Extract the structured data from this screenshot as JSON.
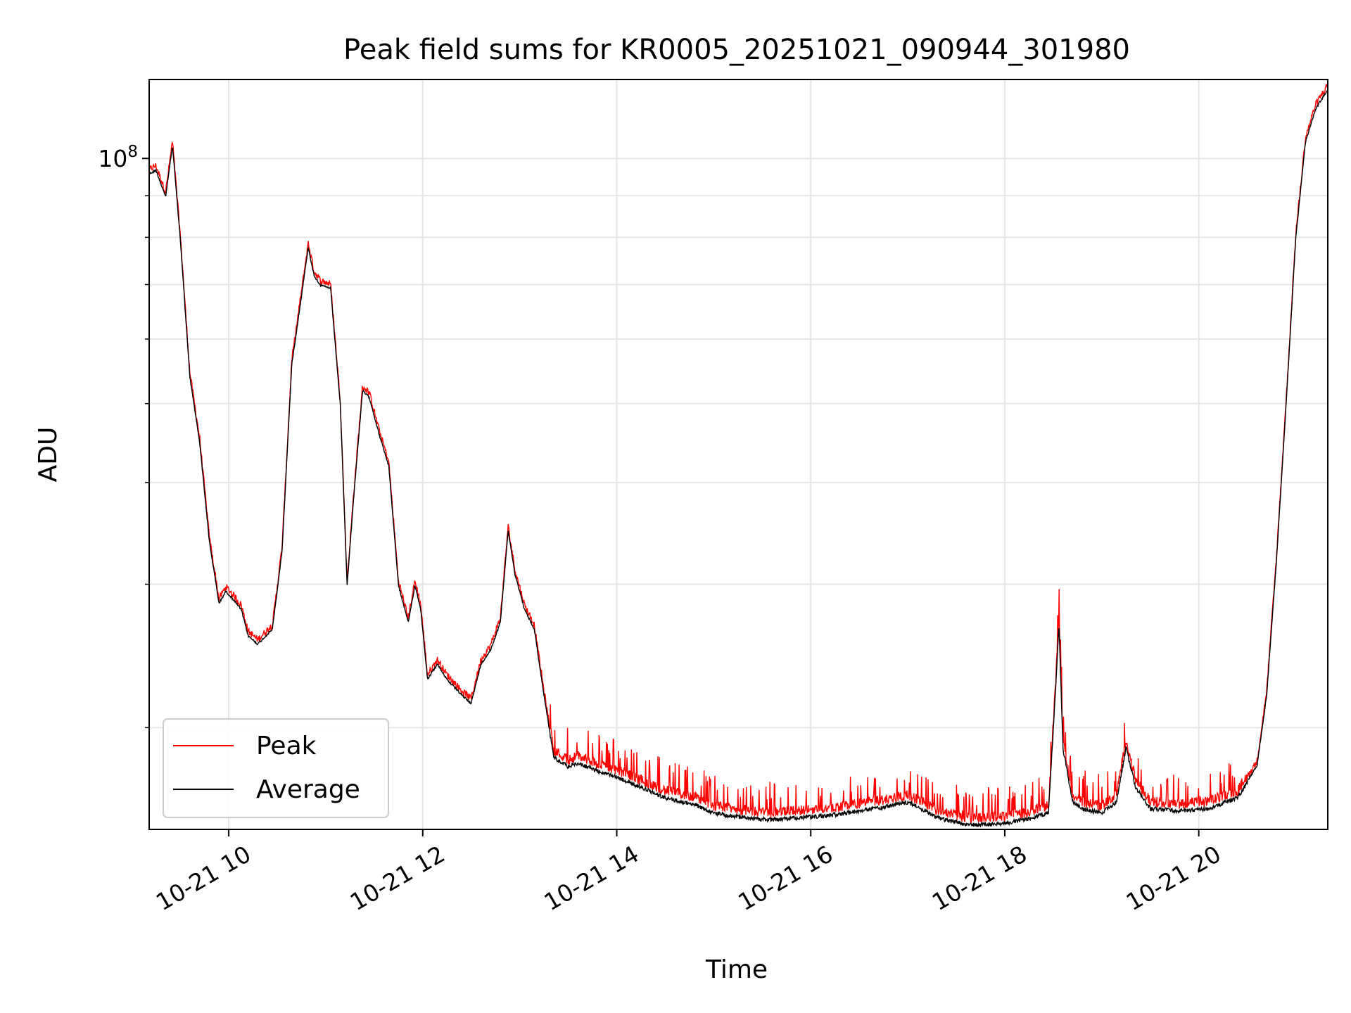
{
  "chart_data": {
    "type": "line",
    "title": "Peak field sums for KR0005_20251021_090944_301980",
    "xlabel": "Time",
    "ylabel": "ADU",
    "y_scale": "log",
    "ylim": [
      15000000,
      125000000
    ],
    "xlim_hours": [
      9.18,
      21.33
    ],
    "x_ticks": [
      {
        "value": 10,
        "label": "10-21 10"
      },
      {
        "value": 12,
        "label": "10-21 12"
      },
      {
        "value": 14,
        "label": "10-21 14"
      },
      {
        "value": 16,
        "label": "10-21 16"
      },
      {
        "value": 18,
        "label": "10-21 18"
      },
      {
        "value": 20,
        "label": "10-21 20"
      }
    ],
    "y_ticks": [
      {
        "value": 100000000,
        "base": "10",
        "exp": "8"
      }
    ],
    "y_minor_ticks": [
      20000000,
      30000000,
      40000000,
      50000000,
      60000000,
      70000000,
      80000000,
      90000000
    ],
    "grid": true,
    "legend_position": "lower-left",
    "series": [
      {
        "name": "Peak",
        "color": "#ff0000"
      },
      {
        "name": "Average",
        "color": "#000000"
      }
    ],
    "average_points": [
      [
        9.18,
        96000000
      ],
      [
        9.25,
        97000000
      ],
      [
        9.35,
        90000000
      ],
      [
        9.42,
        104000000
      ],
      [
        9.5,
        80000000
      ],
      [
        9.6,
        54000000
      ],
      [
        9.7,
        45000000
      ],
      [
        9.8,
        34000000
      ],
      [
        9.9,
        28500000
      ],
      [
        9.97,
        29500000
      ],
      [
        10.05,
        28800000
      ],
      [
        10.13,
        28000000
      ],
      [
        10.2,
        26000000
      ],
      [
        10.3,
        25400000
      ],
      [
        10.45,
        26500000
      ],
      [
        10.55,
        33000000
      ],
      [
        10.65,
        56000000
      ],
      [
        10.75,
        68000000
      ],
      [
        10.82,
        78000000
      ],
      [
        10.88,
        72000000
      ],
      [
        10.95,
        70000000
      ],
      [
        11.05,
        69500000
      ],
      [
        11.15,
        50000000
      ],
      [
        11.22,
        30000000
      ],
      [
        11.3,
        40000000
      ],
      [
        11.38,
        52000000
      ],
      [
        11.45,
        51000000
      ],
      [
        11.55,
        46000000
      ],
      [
        11.65,
        42000000
      ],
      [
        11.75,
        30000000
      ],
      [
        11.85,
        27000000
      ],
      [
        11.92,
        30000000
      ],
      [
        11.98,
        28000000
      ],
      [
        12.05,
        23000000
      ],
      [
        12.15,
        24000000
      ],
      [
        12.25,
        23000000
      ],
      [
        12.4,
        22000000
      ],
      [
        12.5,
        21500000
      ],
      [
        12.6,
        24000000
      ],
      [
        12.7,
        25000000
      ],
      [
        12.8,
        27000000
      ],
      [
        12.88,
        35000000
      ],
      [
        12.95,
        31000000
      ],
      [
        13.05,
        28000000
      ],
      [
        13.15,
        26500000
      ],
      [
        13.25,
        22000000
      ],
      [
        13.35,
        18500000
      ],
      [
        13.5,
        18000000
      ],
      [
        13.6,
        18200000
      ],
      [
        13.8,
        17800000
      ],
      [
        14.0,
        17500000
      ],
      [
        14.25,
        17000000
      ],
      [
        14.5,
        16500000
      ],
      [
        14.8,
        16200000
      ],
      [
        15.0,
        15800000
      ],
      [
        15.3,
        15600000
      ],
      [
        15.6,
        15500000
      ],
      [
        15.9,
        15600000
      ],
      [
        16.2,
        15700000
      ],
      [
        16.5,
        15900000
      ],
      [
        16.8,
        16100000
      ],
      [
        17.0,
        16300000
      ],
      [
        17.1,
        16100000
      ],
      [
        17.3,
        15600000
      ],
      [
        17.6,
        15300000
      ],
      [
        17.9,
        15300000
      ],
      [
        18.2,
        15500000
      ],
      [
        18.45,
        15800000
      ],
      [
        18.52,
        22000000
      ],
      [
        18.56,
        27000000
      ],
      [
        18.6,
        19000000
      ],
      [
        18.7,
        16300000
      ],
      [
        18.8,
        16000000
      ],
      [
        19.0,
        15800000
      ],
      [
        19.15,
        16300000
      ],
      [
        19.25,
        19000000
      ],
      [
        19.35,
        17000000
      ],
      [
        19.5,
        16000000
      ],
      [
        19.8,
        15900000
      ],
      [
        20.1,
        16000000
      ],
      [
        20.4,
        16500000
      ],
      [
        20.6,
        18000000
      ],
      [
        20.7,
        22000000
      ],
      [
        20.8,
        32000000
      ],
      [
        20.9,
        50000000
      ],
      [
        21.0,
        80000000
      ],
      [
        21.1,
        105000000
      ],
      [
        21.2,
        115000000
      ],
      [
        21.33,
        122000000
      ]
    ]
  }
}
